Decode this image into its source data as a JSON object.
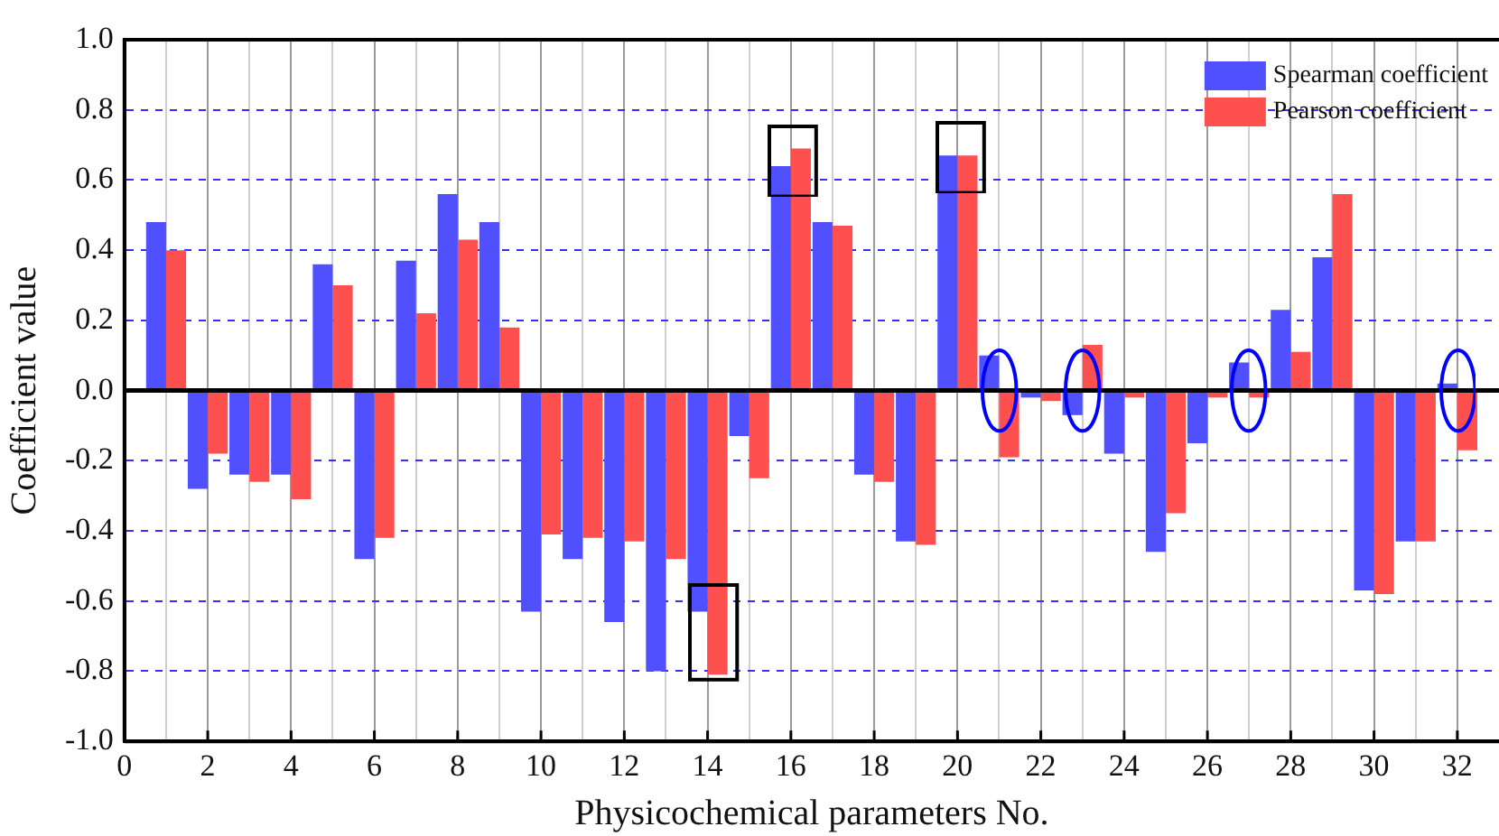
{
  "chart_data": {
    "type": "bar",
    "xlabel": "Physicochemical parameters No.",
    "ylabel": "Coefficient value",
    "x": [
      1,
      2,
      3,
      4,
      5,
      6,
      7,
      8,
      9,
      10,
      11,
      12,
      13,
      14,
      15,
      16,
      17,
      18,
      19,
      20,
      21,
      22,
      23,
      24,
      25,
      26,
      27,
      28,
      29,
      30,
      31,
      32
    ],
    "series": [
      {
        "name": "Spearman coefficient",
        "color": "#5050ff",
        "values": [
          0.48,
          -0.28,
          -0.24,
          -0.24,
          0.36,
          -0.48,
          0.37,
          0.56,
          0.48,
          -0.63,
          -0.48,
          -0.66,
          -0.8,
          -0.63,
          -0.13,
          0.64,
          0.48,
          -0.24,
          -0.43,
          0.67,
          0.1,
          -0.02,
          -0.07,
          -0.18,
          -0.46,
          -0.15,
          0.08,
          0.23,
          0.38,
          -0.57,
          -0.43,
          0.02
        ]
      },
      {
        "name": "Pearson coefficient",
        "color": "#ff5050",
        "values": [
          0.4,
          -0.18,
          -0.26,
          -0.31,
          0.3,
          -0.42,
          0.22,
          0.43,
          0.18,
          -0.41,
          -0.42,
          -0.43,
          -0.48,
          -0.81,
          -0.25,
          0.69,
          0.47,
          -0.26,
          -0.44,
          0.67,
          -0.19,
          -0.03,
          0.13,
          -0.02,
          -0.35,
          -0.02,
          -0.02,
          0.11,
          0.56,
          -0.58,
          -0.43,
          -0.17
        ]
      }
    ],
    "xlim": [
      0,
      33
    ],
    "xticks": [
      0,
      {
        "value": 1,
        "label": null
      },
      2,
      {
        "value": 3,
        "label": null
      },
      4,
      {
        "value": 5,
        "label": null
      },
      6,
      {
        "value": 7,
        "label": null
      },
      8,
      {
        "value": 9,
        "label": null
      },
      10,
      {
        "value": 11,
        "label": null
      },
      12,
      {
        "value": 13,
        "label": null
      },
      14,
      {
        "value": 15,
        "label": null
      },
      16,
      {
        "value": 17,
        "label": null
      },
      18,
      {
        "value": 19,
        "label": null
      },
      20,
      {
        "value": 21,
        "label": null
      },
      22,
      {
        "value": 23,
        "label": null
      },
      24,
      {
        "value": 25,
        "label": null
      },
      26,
      {
        "value": 27,
        "label": null
      },
      28,
      {
        "value": 29,
        "label": null
      },
      30,
      {
        "value": 31,
        "label": null
      },
      32
    ],
    "ylim": [
      -1.0,
      1.0
    ],
    "yticks": [
      {
        "value": -1.0,
        "label": "-1.0"
      },
      {
        "value": -0.8,
        "label": "-0.8"
      },
      {
        "value": -0.6,
        "label": "-0.6"
      },
      {
        "value": -0.4,
        "label": "-0.4"
      },
      {
        "value": -0.2,
        "label": "-0.2"
      },
      {
        "value": 0,
        "label": "0.0"
      },
      {
        "value": 0.2,
        "label": "0.2"
      },
      {
        "value": 0.4,
        "label": "0.4"
      },
      {
        "value": 0.6,
        "label": "0.6"
      },
      {
        "value": 0.8,
        "label": "0.8"
      },
      {
        "value": 1.0,
        "label": "1.0"
      }
    ],
    "grid": true,
    "legend": "top right"
  }
}
